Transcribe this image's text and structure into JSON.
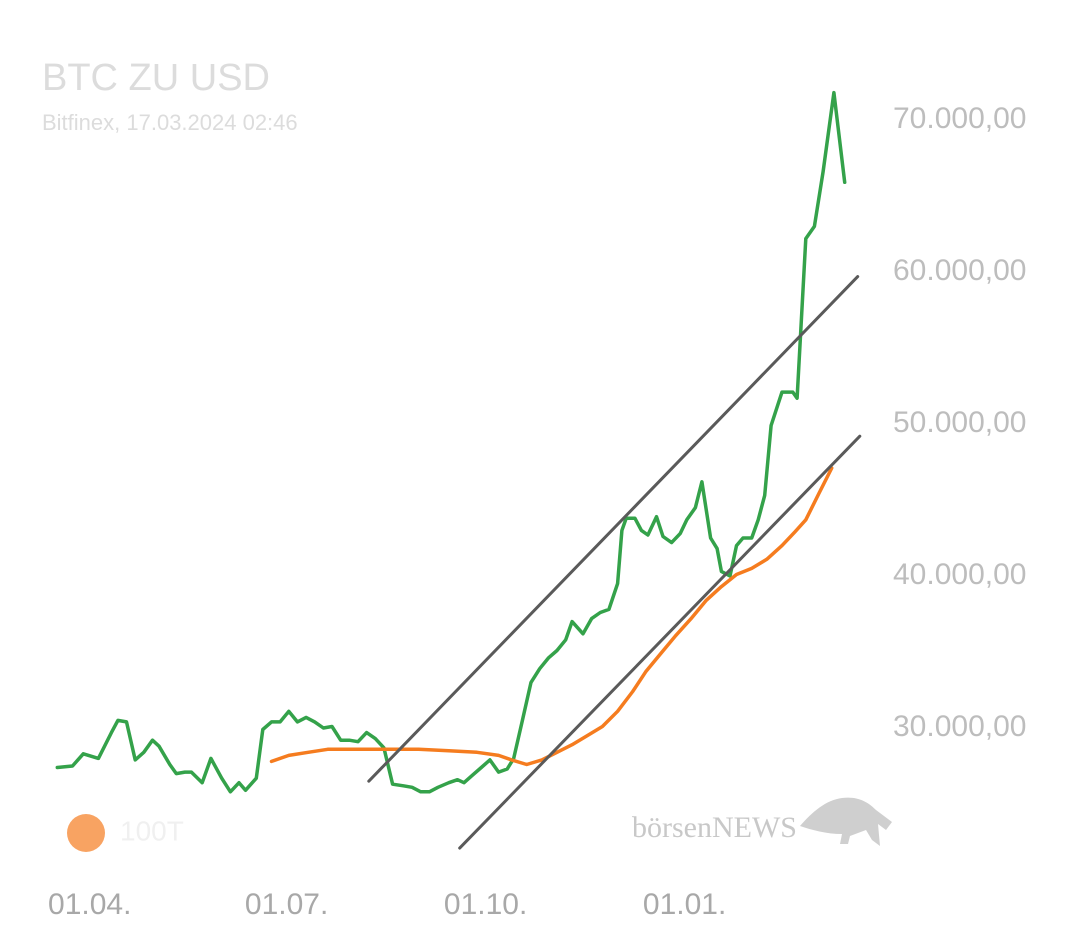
{
  "chart_data": {
    "type": "line",
    "title": "BTC ZU USD",
    "subtitle": "Bitfinex, 17.03.2024 02:46",
    "watermark": "börsenNEWS",
    "xlim": [
      -20,
      357
    ],
    "xticks": [
      {
        "value": 0,
        "label": "01.04."
      },
      {
        "value": 91,
        "label": "01.07."
      },
      {
        "value": 183,
        "label": "01.10."
      },
      {
        "value": 275,
        "label": "01.01."
      }
    ],
    "ylim": [
      22000,
      72500
    ],
    "yticks": [
      {
        "value": 30000,
        "label": "30.000,00"
      },
      {
        "value": 40000,
        "label": "40.000,00"
      },
      {
        "value": 50000,
        "label": "50.000,00"
      },
      {
        "value": 60000,
        "label": "60.000,00"
      },
      {
        "value": 70000,
        "label": "70.000,00"
      }
    ],
    "y_axis_side": "right",
    "grid": false,
    "legend": "lower left",
    "series": [
      {
        "color": "#34a24a",
        "x": [
          -15,
          -8,
          -3,
          4,
          10,
          13,
          17,
          21,
          25,
          29,
          32,
          37,
          40,
          44,
          47,
          52,
          56,
          61,
          65,
          69,
          72,
          77,
          80,
          84,
          88,
          92,
          96,
          100,
          104,
          108,
          112,
          116,
          120,
          124,
          128,
          132,
          136,
          140,
          145,
          149,
          153,
          157,
          161,
          166,
          170,
          173,
          177,
          181,
          185,
          189,
          193,
          196,
          200,
          204,
          208,
          212,
          216,
          220,
          223,
          228,
          232,
          236,
          240,
          244,
          246,
          248,
          252,
          255,
          258,
          262,
          265,
          269,
          273,
          276,
          280,
          283,
          287,
          290,
          292,
          296,
          299,
          302,
          306,
          309,
          312,
          315,
          320,
          325,
          327,
          331,
          335,
          339,
          344,
          349
        ],
        "values": [
          27400,
          27500,
          28300,
          28000,
          29700,
          30500,
          30400,
          27900,
          28400,
          29200,
          28800,
          27600,
          27000,
          27100,
          27100,
          26400,
          28000,
          26700,
          25800,
          26400,
          25900,
          26700,
          29900,
          30400,
          30400,
          31100,
          30400,
          30700,
          30400,
          30000,
          30100,
          29200,
          29200,
          29100,
          29700,
          29300,
          28700,
          26300,
          26200,
          26100,
          25800,
          25800,
          26100,
          26400,
          26600,
          26400,
          26900,
          27400,
          27900,
          27100,
          27300,
          28000,
          30500,
          33000,
          33900,
          34600,
          35100,
          35800,
          37000,
          36200,
          37200,
          37600,
          37800,
          39500,
          43000,
          43800,
          43800,
          43000,
          42700,
          43900,
          42600,
          42200,
          42800,
          43700,
          44500,
          46200,
          42500,
          41800,
          40300,
          40000,
          42000,
          42500,
          42500,
          43700,
          45300,
          49900,
          52100,
          52100,
          51700,
          62200,
          63000,
          66600,
          71800,
          65900
        ]
      },
      {
        "name": "100T",
        "color": "#f57c1f",
        "x": [
          84,
          92,
          101,
          110,
          124,
          138,
          152,
          166,
          179,
          189,
          195,
          202,
          209,
          216,
          223,
          230,
          237,
          244,
          251,
          257,
          264,
          271,
          278,
          285,
          292,
          299,
          306,
          313,
          320,
          326,
          331,
          337,
          343
        ],
        "values": [
          27800,
          28200,
          28400,
          28600,
          28600,
          28600,
          28600,
          28500,
          28400,
          28200,
          27900,
          27600,
          27900,
          28400,
          28900,
          29500,
          30100,
          31100,
          32400,
          33700,
          34900,
          36100,
          37200,
          38400,
          39300,
          40100,
          40500,
          41100,
          42000,
          42900,
          43700,
          45400,
          47100
        ]
      },
      {
        "color": "#5a5a5a",
        "x": [
          129,
          355
        ],
        "values": [
          26500,
          59700
        ]
      },
      {
        "color": "#5a5a5a",
        "x": [
          171,
          356
        ],
        "values": [
          22100,
          49200
        ]
      }
    ]
  }
}
